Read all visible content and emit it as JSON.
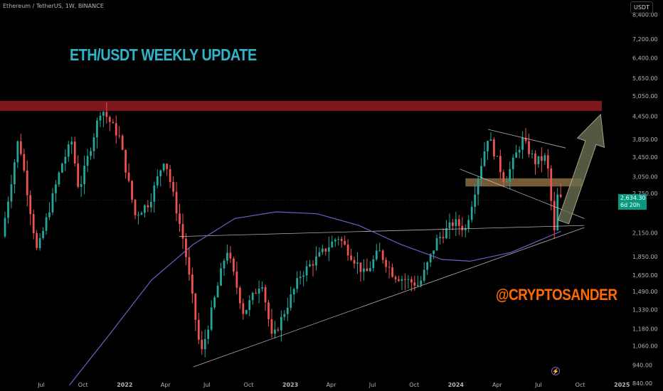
{
  "header": {
    "symbol_title": "Ethereum / TetherUS, 1W, BINANCE",
    "currency_button": "USDT"
  },
  "annotations": {
    "headline": "ETH/USDT WEEKLY UPDATE",
    "author": "@CRYPTOSANDER"
  },
  "price_tag": {
    "price": "2,634.30",
    "countdown": "6d 20h"
  },
  "colors": {
    "up_candle": "#26a69a",
    "down_candle": "#ef5350",
    "moving_average": "#7e57c2",
    "resistance_zone": "#8b1a1f",
    "support_zone": "#9c7a4a",
    "arrow": "#6b6e52",
    "trendline": "#cfcfcf"
  },
  "icons": {
    "bolt": "lightning-icon"
  },
  "chart_data": {
    "type": "candlestick",
    "title": "ETH/USDT WEEKLY UPDATE",
    "x_tick_labels": [
      "Jul",
      "Oct",
      "2022",
      "Apr",
      "Jul",
      "Oct",
      "2023",
      "Apr",
      "Jul",
      "Oct",
      "2024",
      "Apr",
      "Jul",
      "Oct",
      "2025"
    ],
    "y_tick_labels": [
      "8,400.00",
      "7,200.00",
      "6,400.00",
      "5,650.00",
      "5,050.00",
      "4,450.00",
      "3,850.00",
      "3,450.00",
      "3,050.00",
      "2,750.00",
      "2,150.00",
      "1,850.00",
      "1,650.00",
      "1,490.00",
      "1,330.00",
      "1,180.00",
      "1,060.00",
      "940.00",
      "840.00"
    ],
    "y_scale": "log",
    "ylim": [
      800,
      9200
    ],
    "xlim": [
      "2021-04-01",
      "2025-01-10"
    ],
    "last_price": 2634.3,
    "price_series": [
      [
        "2021-04-05",
        2100
      ],
      [
        "2021-05-12",
        3900
      ],
      [
        "2021-06-22",
        1900
      ],
      [
        "2021-08-15",
        3300
      ],
      [
        "2021-09-06",
        3800
      ],
      [
        "2021-09-22",
        2800
      ],
      [
        "2021-11-10",
        4700
      ],
      [
        "2021-12-20",
        3900
      ],
      [
        "2022-01-24",
        2400
      ],
      [
        "2022-02-24",
        2600
      ],
      [
        "2022-03-30",
        3450
      ],
      [
        "2022-05-12",
        2000
      ],
      [
        "2022-06-18",
        1000
      ],
      [
        "2022-08-14",
        1950
      ],
      [
        "2022-09-20",
        1300
      ],
      [
        "2022-10-30",
        1600
      ],
      [
        "2022-11-22",
        1100
      ],
      [
        "2023-01-23",
        1650
      ],
      [
        "2023-04-16",
        2100
      ],
      [
        "2023-06-15",
        1650
      ],
      [
        "2023-07-15",
        1920
      ],
      [
        "2023-08-17",
        1650
      ],
      [
        "2023-10-12",
        1550
      ],
      [
        "2023-11-20",
        2050
      ],
      [
        "2023-12-28",
        2300
      ],
      [
        "2024-01-22",
        2200
      ],
      [
        "2024-03-12",
        3950
      ],
      [
        "2024-04-18",
        2950
      ],
      [
        "2024-05-26",
        3850
      ],
      [
        "2024-06-24",
        3350
      ],
      [
        "2024-07-19",
        3450
      ],
      [
        "2024-08-05",
        2150
      ],
      [
        "2024-08-12",
        2700
      ],
      [
        "2024-08-20",
        2634
      ]
    ],
    "moving_average": [
      [
        "2021-09-01",
        830
      ],
      [
        "2021-12-01",
        1150
      ],
      [
        "2022-03-01",
        1600
      ],
      [
        "2022-06-01",
        2000
      ],
      [
        "2022-09-01",
        2350
      ],
      [
        "2022-12-01",
        2450
      ],
      [
        "2023-03-01",
        2420
      ],
      [
        "2023-06-01",
        2250
      ],
      [
        "2023-09-01",
        2000
      ],
      [
        "2023-12-01",
        1820
      ],
      [
        "2024-02-01",
        1800
      ],
      [
        "2024-05-01",
        1900
      ],
      [
        "2024-08-20",
        2170
      ]
    ],
    "resistance_zone": [
      4600,
      4900
    ],
    "support_zone": [
      2870,
      3020
    ],
    "trendlines": [
      {
        "from": [
          "2022-06-01",
          930
        ],
        "to": [
          "2024-10-10",
          2220
        ]
      },
      {
        "from": [
          "2022-05-01",
          2100
        ],
        "to": [
          "2024-10-10",
          2250
        ]
      },
      {
        "from": [
          "2024-03-12",
          4100
        ],
        "to": [
          "2024-08-30",
          3650
        ]
      },
      {
        "from": [
          "2024-01-10",
          3200
        ],
        "to": [
          "2024-10-10",
          2350
        ]
      }
    ],
    "projection_arrow": {
      "from": [
        "2024-08-25",
        2300
      ],
      "to": [
        "2024-11-15",
        4500
      ]
    }
  }
}
